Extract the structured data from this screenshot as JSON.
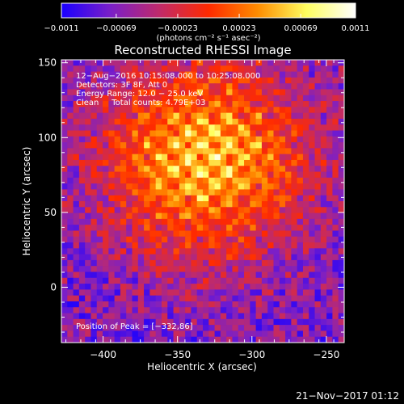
{
  "chart_data": {
    "type": "heatmap",
    "title": "Reconstructed RHESSI Image",
    "xlabel": "Heliocentric X (arcsec)",
    "ylabel": "Heliocentric Y (arcsec)",
    "xlim": [
      -428,
      -238
    ],
    "ylim": [
      -37,
      152
    ],
    "x_ticks": [
      -400,
      -350,
      -300,
      -250
    ],
    "x_tick_labels": [
      "−400",
      "−350",
      "−300",
      "−250"
    ],
    "y_ticks": [
      0,
      50,
      100,
      150
    ],
    "y_tick_labels": [
      "0",
      "50",
      "100",
      "150"
    ],
    "colorbar": {
      "ticks": [
        -0.0011,
        -0.00069,
        -0.00023,
        0.00023,
        0.00069,
        0.0011
      ],
      "tick_labels": [
        "−0.0011",
        "−0.00069",
        "−0.00023",
        "0.00023",
        "0.00069",
        "0.0011"
      ],
      "range": [
        -0.0011,
        0.0011
      ],
      "unit_label": "(photons cm⁻² s⁻¹ asec⁻²)",
      "stops": [
        "#1a00ff",
        "#7a1fc8",
        "#c02a6a",
        "#ff2a00",
        "#ff8c00",
        "#ffff60",
        "#ffffff"
      ]
    },
    "annotations": [
      "12−Aug−2016 10:15:08.000 to 10:25:08.000",
      "Detectors: 3F 8F, Att 0",
      "Energy Range: 12.0 − 25.0 keV",
      "Clean     Total counts: 4.79E+03"
    ],
    "peak_label": "Position of Peak = [−332,86]",
    "peak": {
      "x": -332,
      "y": 86
    },
    "grid": false
  },
  "footer": {
    "timestamp": "21−Nov−2017 01:12"
  }
}
